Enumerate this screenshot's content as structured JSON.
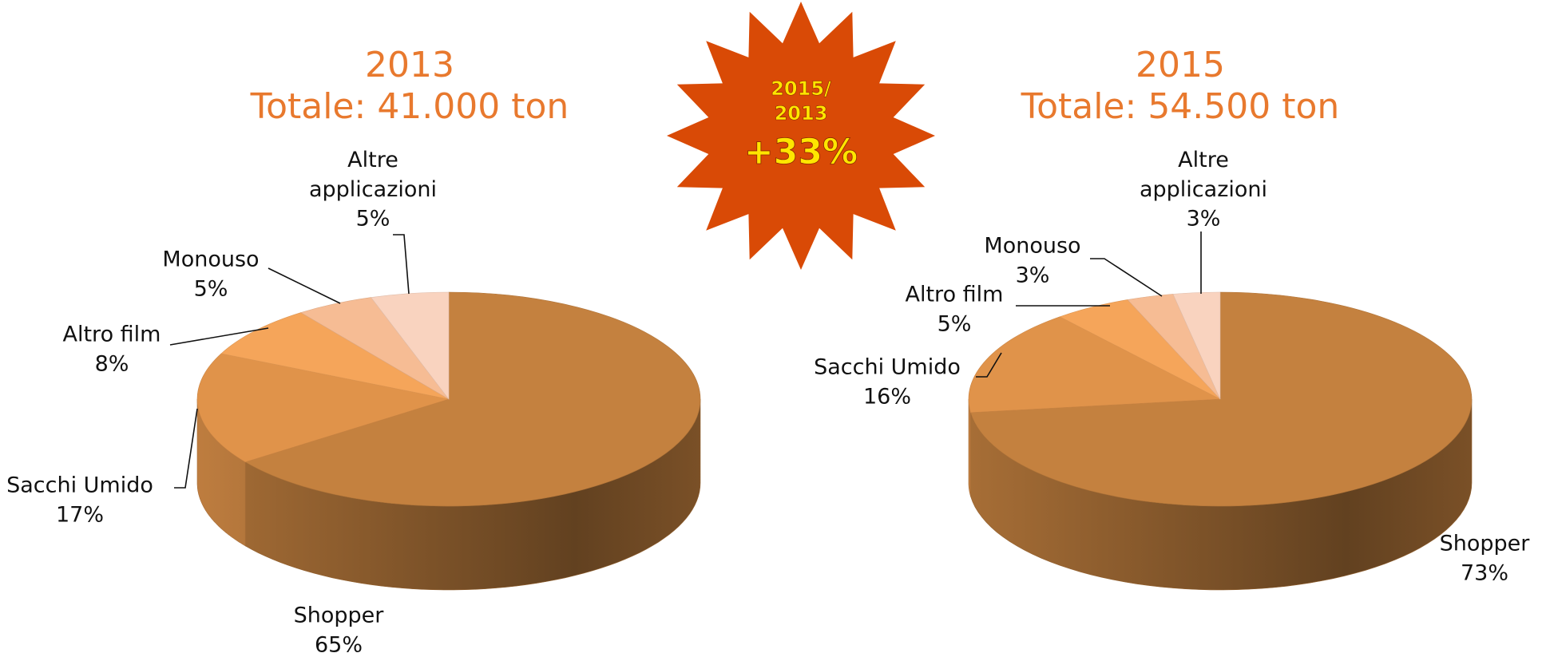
{
  "chart_data": [
    {
      "type": "pie3d",
      "title": "2013",
      "subtitle": "Totale: 41.000 ton",
      "categories": [
        "Shopper",
        "Sacchi Umido",
        "Altro film",
        "Monouso",
        "Altre applicazioni"
      ],
      "values": [
        65,
        17,
        8,
        5,
        5
      ],
      "value_labels": [
        "65%",
        "17%",
        "8%",
        "5%",
        "5%"
      ],
      "colors": [
        "#c4813f",
        "#e0934a",
        "#f5a55a",
        "#f6bc94",
        "#f9d3bf"
      ]
    },
    {
      "type": "pie3d",
      "title": "2015",
      "subtitle": "Totale: 54.500 ton",
      "categories": [
        "Shopper",
        "Sacchi Umido",
        "Altro film",
        "Monouso",
        "Altre applicazioni"
      ],
      "values": [
        73,
        16,
        5,
        3,
        3
      ],
      "value_labels": [
        "73%",
        "16%",
        "5%",
        "3%",
        "3%"
      ],
      "colors": [
        "#c4813f",
        "#e0934a",
        "#f5a55a",
        "#f6bc94",
        "#f9d3bf"
      ]
    }
  ],
  "badge": {
    "caption": [
      "2015/",
      "2013"
    ],
    "text": "+33%"
  }
}
